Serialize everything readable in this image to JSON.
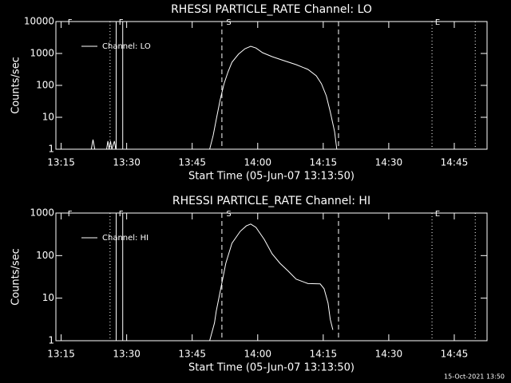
{
  "chart_data": [
    {
      "type": "line",
      "title": "RHESSI PARTICLE_RATE Channel: LO",
      "xlabel": "Start Time (05-Jun-07 13:13:50)",
      "ylabel": "Counts/sec",
      "log_y": true,
      "color": "#ffffff",
      "xlim": [
        793.8,
        892.5
      ],
      "ylim": [
        1,
        10000
      ],
      "xticks": [
        {
          "value": 795,
          "label": "13:15"
        },
        {
          "value": 810,
          "label": "13:30"
        },
        {
          "value": 825,
          "label": "13:45"
        },
        {
          "value": 840,
          "label": "14:00"
        },
        {
          "value": 855,
          "label": "14:15"
        },
        {
          "value": 870,
          "label": "14:30"
        },
        {
          "value": 885,
          "label": "14:45"
        }
      ],
      "yticks": [
        1,
        10,
        100,
        1000,
        10000
      ],
      "markers": [
        {
          "x": 806.2,
          "style": "dotted"
        },
        {
          "x": 807.6,
          "style": "solid"
        },
        {
          "x": 809.1,
          "style": "solid"
        },
        {
          "x": 831.8,
          "style": "dashed"
        },
        {
          "x": 858.5,
          "style": "dashed"
        },
        {
          "x": 879.9,
          "style": "dotted"
        },
        {
          "x": 889.8,
          "style": "dotted"
        }
      ],
      "annotations": [
        {
          "text": "F",
          "x": 796.5
        },
        {
          "text": "F",
          "x": 808.2
        },
        {
          "text": "S",
          "x": 832.8
        },
        {
          "text": "E",
          "x": 880.6
        }
      ],
      "x": [
        801.9,
        802.3,
        802.7,
        null,
        805.4,
        805.7,
        806.0,
        806.3,
        806.6,
        807.2,
        807.5,
        null,
        829.0,
        829.8,
        830.5,
        831.4,
        832.3,
        833.2,
        834.1,
        835.6,
        837.1,
        838.4,
        839.6,
        841.1,
        843.3,
        846.0,
        848.8,
        851.5,
        853.4,
        854.6,
        855.7,
        856.6,
        857.6,
        858.1
      ],
      "series": [
        {
          "name": "Channel: LO",
          "color": "#ffffff",
          "values": [
            1,
            2,
            1,
            null,
            1,
            1.8,
            1,
            1.8,
            1,
            1.8,
            1,
            null,
            1,
            2.7,
            8.4,
            35,
            112,
            266,
            532,
            950,
            1413,
            1680,
            1479,
            1059,
            794,
            596,
            447,
            316,
            200,
            112,
            47,
            15,
            3.5,
            1
          ]
        }
      ]
    },
    {
      "type": "line",
      "title": "RHESSI PARTICLE_RATE Channel: HI",
      "xlabel": "Start Time (05-Jun-07 13:13:50)",
      "ylabel": "Counts/sec",
      "log_y": true,
      "color": "#ffffff",
      "xlim": [
        793.8,
        892.5
      ],
      "ylim": [
        1,
        1000
      ],
      "xticks": [
        {
          "value": 795,
          "label": "13:15"
        },
        {
          "value": 810,
          "label": "13:30"
        },
        {
          "value": 825,
          "label": "13:45"
        },
        {
          "value": 840,
          "label": "14:00"
        },
        {
          "value": 855,
          "label": "14:15"
        },
        {
          "value": 870,
          "label": "14:30"
        },
        {
          "value": 885,
          "label": "14:45"
        }
      ],
      "yticks": [
        1,
        10,
        100,
        1000
      ],
      "markers": [
        {
          "x": 806.2,
          "style": "dotted"
        },
        {
          "x": 807.6,
          "style": "solid"
        },
        {
          "x": 809.1,
          "style": "solid"
        },
        {
          "x": 831.8,
          "style": "dashed"
        },
        {
          "x": 858.5,
          "style": "dashed"
        },
        {
          "x": 879.9,
          "style": "dotted"
        },
        {
          "x": 889.8,
          "style": "dotted"
        }
      ],
      "annotations": [
        {
          "text": "F",
          "x": 796.5
        },
        {
          "text": "F",
          "x": 808.2
        },
        {
          "text": "S",
          "x": 832.8
        },
        {
          "text": "E",
          "x": 880.6
        }
      ],
      "x": [
        829.0,
        830.1,
        830.5,
        831.6,
        832.7,
        834.1,
        836.0,
        837.4,
        838.4,
        839.6,
        841.5,
        843.3,
        845.1,
        847.0,
        848.8,
        851.5,
        854.3,
        855.2,
        856.1,
        856.6,
        857.2
      ],
      "series": [
        {
          "name": "Channel: HI",
          "color": "#ffffff",
          "values": [
            1,
            2.6,
            4.9,
            18,
            66,
            195,
            372,
            500,
            550,
            460,
            240,
            110,
            66,
            43,
            28,
            22,
            21.6,
            16.6,
            7.6,
            3.2,
            1.8
          ]
        }
      ]
    }
  ],
  "footer": "15-Oct-2021 13:50"
}
